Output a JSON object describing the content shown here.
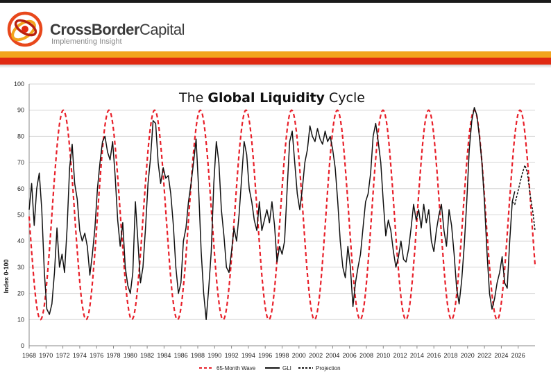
{
  "header": {
    "brand_bold": "CrossBorder",
    "brand_light": "Capital",
    "tagline": "Implementing Insight",
    "colors": {
      "orange": "#f2a51e",
      "red": "#e02a12"
    }
  },
  "chart_data": {
    "type": "line",
    "title_plain_1": "The ",
    "title_bold": "Global Liquidity",
    "title_plain_2": " Cycle",
    "ylabel": "Index 0-100",
    "xlabel": "",
    "xlim": [
      1968,
      2028
    ],
    "ylim": [
      0,
      100
    ],
    "y_ticks": [
      0,
      10,
      20,
      30,
      40,
      50,
      60,
      70,
      80,
      90,
      100
    ],
    "x_tick_labels": [
      "1968",
      "1970",
      "1972",
      "1974",
      "1976",
      "1978",
      "1980",
      "1982",
      "1984",
      "1986",
      "1988",
      "1990",
      "1992",
      "1994",
      "1996",
      "1998",
      "2000",
      "2002",
      "2004",
      "2006",
      "2008",
      "2010",
      "2012",
      "2014",
      "2016",
      "2018",
      "2020",
      "2022",
      "2024",
      "2026"
    ],
    "legend_position": "bottom",
    "grid": "horizontal",
    "series": [
      {
        "name": "65-Month Wave",
        "style": "dashed",
        "color": "#e8202a",
        "model": {
          "period_months": 65,
          "min": 10,
          "max": 90,
          "peak_year": 2020.8
        }
      },
      {
        "name": "GLI",
        "style": "solid",
        "color": "#111111",
        "points": [
          [
            1968.0,
            52
          ],
          [
            1968.3,
            62
          ],
          [
            1968.6,
            46
          ],
          [
            1968.9,
            60
          ],
          [
            1969.2,
            66
          ],
          [
            1969.5,
            52
          ],
          [
            1969.8,
            28
          ],
          [
            1970.1,
            14
          ],
          [
            1970.4,
            12
          ],
          [
            1970.7,
            16
          ],
          [
            1971.0,
            28
          ],
          [
            1971.3,
            45
          ],
          [
            1971.6,
            30
          ],
          [
            1971.9,
            35
          ],
          [
            1972.2,
            28
          ],
          [
            1972.5,
            45
          ],
          [
            1972.8,
            68
          ],
          [
            1973.1,
            77
          ],
          [
            1973.4,
            62
          ],
          [
            1973.7,
            56
          ],
          [
            1974.0,
            44
          ],
          [
            1974.3,
            40
          ],
          [
            1974.6,
            43
          ],
          [
            1974.9,
            38
          ],
          [
            1975.2,
            27
          ],
          [
            1975.5,
            35
          ],
          [
            1975.8,
            45
          ],
          [
            1976.1,
            60
          ],
          [
            1976.4,
            70
          ],
          [
            1976.7,
            78
          ],
          [
            1977.0,
            80
          ],
          [
            1977.3,
            74
          ],
          [
            1977.6,
            71
          ],
          [
            1977.9,
            78
          ],
          [
            1978.2,
            65
          ],
          [
            1978.5,
            48
          ],
          [
            1978.8,
            38
          ],
          [
            1979.1,
            47
          ],
          [
            1979.4,
            30
          ],
          [
            1979.7,
            23
          ],
          [
            1980.0,
            20
          ],
          [
            1980.3,
            28
          ],
          [
            1980.6,
            55
          ],
          [
            1980.9,
            40
          ],
          [
            1981.2,
            24
          ],
          [
            1981.5,
            30
          ],
          [
            1981.8,
            45
          ],
          [
            1982.1,
            62
          ],
          [
            1982.4,
            72
          ],
          [
            1982.7,
            86
          ],
          [
            1983.0,
            85
          ],
          [
            1983.3,
            70
          ],
          [
            1983.6,
            62
          ],
          [
            1983.9,
            68
          ],
          [
            1984.2,
            64
          ],
          [
            1984.5,
            65
          ],
          [
            1984.8,
            58
          ],
          [
            1985.1,
            46
          ],
          [
            1985.4,
            30
          ],
          [
            1985.7,
            20
          ],
          [
            1986.0,
            24
          ],
          [
            1986.3,
            40
          ],
          [
            1986.6,
            45
          ],
          [
            1986.9,
            55
          ],
          [
            1987.2,
            62
          ],
          [
            1987.5,
            70
          ],
          [
            1987.8,
            79
          ],
          [
            1988.1,
            60
          ],
          [
            1988.4,
            36
          ],
          [
            1988.7,
            20
          ],
          [
            1989.0,
            10
          ],
          [
            1989.3,
            22
          ],
          [
            1989.6,
            36
          ],
          [
            1989.9,
            62
          ],
          [
            1990.2,
            78
          ],
          [
            1990.5,
            70
          ],
          [
            1990.8,
            52
          ],
          [
            1991.1,
            42
          ],
          [
            1991.4,
            30
          ],
          [
            1991.7,
            28
          ],
          [
            1992.0,
            36
          ],
          [
            1992.3,
            45
          ],
          [
            1992.6,
            40
          ],
          [
            1992.9,
            50
          ],
          [
            1993.2,
            64
          ],
          [
            1993.5,
            78
          ],
          [
            1993.8,
            73
          ],
          [
            1994.1,
            60
          ],
          [
            1994.4,
            55
          ],
          [
            1994.7,
            48
          ],
          [
            1995.0,
            44
          ],
          [
            1995.3,
            55
          ],
          [
            1995.6,
            44
          ],
          [
            1995.9,
            48
          ],
          [
            1996.2,
            52
          ],
          [
            1996.5,
            47
          ],
          [
            1996.8,
            55
          ],
          [
            1997.1,
            46
          ],
          [
            1997.4,
            32
          ],
          [
            1997.7,
            38
          ],
          [
            1998.0,
            35
          ],
          [
            1998.3,
            40
          ],
          [
            1998.6,
            60
          ],
          [
            1998.9,
            78
          ],
          [
            1999.2,
            82
          ],
          [
            1999.5,
            70
          ],
          [
            1999.8,
            58
          ],
          [
            2000.1,
            52
          ],
          [
            2000.4,
            60
          ],
          [
            2000.7,
            70
          ],
          [
            2001.0,
            75
          ],
          [
            2001.3,
            84
          ],
          [
            2001.6,
            80
          ],
          [
            2001.9,
            78
          ],
          [
            2002.2,
            83
          ],
          [
            2002.5,
            79
          ],
          [
            2002.8,
            77
          ],
          [
            2003.1,
            82
          ],
          [
            2003.4,
            78
          ],
          [
            2003.7,
            80
          ],
          [
            2004.0,
            75
          ],
          [
            2004.3,
            68
          ],
          [
            2004.6,
            55
          ],
          [
            2004.9,
            40
          ],
          [
            2005.2,
            30
          ],
          [
            2005.5,
            26
          ],
          [
            2005.8,
            38
          ],
          [
            2006.1,
            30
          ],
          [
            2006.4,
            15
          ],
          [
            2006.7,
            24
          ],
          [
            2007.0,
            30
          ],
          [
            2007.3,
            35
          ],
          [
            2007.6,
            45
          ],
          [
            2007.9,
            55
          ],
          [
            2008.2,
            58
          ],
          [
            2008.5,
            66
          ],
          [
            2008.8,
            80
          ],
          [
            2009.1,
            85
          ],
          [
            2009.4,
            78
          ],
          [
            2009.7,
            70
          ],
          [
            2010.0,
            55
          ],
          [
            2010.3,
            42
          ],
          [
            2010.6,
            48
          ],
          [
            2010.9,
            44
          ],
          [
            2011.2,
            36
          ],
          [
            2011.5,
            30
          ],
          [
            2011.8,
            34
          ],
          [
            2012.1,
            40
          ],
          [
            2012.4,
            33
          ],
          [
            2012.7,
            32
          ],
          [
            2013.0,
            37
          ],
          [
            2013.3,
            45
          ],
          [
            2013.6,
            54
          ],
          [
            2013.9,
            48
          ],
          [
            2014.2,
            52
          ],
          [
            2014.5,
            45
          ],
          [
            2014.8,
            54
          ],
          [
            2015.1,
            47
          ],
          [
            2015.4,
            52
          ],
          [
            2015.7,
            40
          ],
          [
            2016.0,
            36
          ],
          [
            2016.3,
            44
          ],
          [
            2016.6,
            50
          ],
          [
            2016.9,
            54
          ],
          [
            2017.2,
            44
          ],
          [
            2017.5,
            38
          ],
          [
            2017.8,
            52
          ],
          [
            2018.1,
            46
          ],
          [
            2018.4,
            35
          ],
          [
            2018.7,
            22
          ],
          [
            2019.0,
            16
          ],
          [
            2019.3,
            25
          ],
          [
            2019.6,
            38
          ],
          [
            2019.9,
            55
          ],
          [
            2020.2,
            75
          ],
          [
            2020.5,
            86
          ],
          [
            2020.8,
            91
          ],
          [
            2021.1,
            88
          ],
          [
            2021.4,
            80
          ],
          [
            2021.7,
            70
          ],
          [
            2022.0,
            55
          ],
          [
            2022.3,
            36
          ],
          [
            2022.6,
            20
          ],
          [
            2022.9,
            14
          ],
          [
            2023.2,
            18
          ],
          [
            2023.5,
            24
          ],
          [
            2023.8,
            28
          ],
          [
            2024.1,
            34
          ],
          [
            2024.4,
            24
          ],
          [
            2024.7,
            22
          ],
          [
            2025.0,
            40
          ],
          [
            2025.3,
            55
          ],
          [
            2025.6,
            59
          ]
        ]
      },
      {
        "name": "Projection",
        "style": "dashed",
        "color": "#111111",
        "points": [
          [
            2025.3,
            55
          ],
          [
            2025.6,
            54
          ],
          [
            2025.9,
            58
          ],
          [
            2026.2,
            62
          ],
          [
            2026.5,
            66
          ],
          [
            2026.8,
            69
          ],
          [
            2027.1,
            66
          ],
          [
            2027.4,
            58
          ],
          [
            2027.7,
            52
          ],
          [
            2028.0,
            44
          ]
        ]
      }
    ]
  }
}
